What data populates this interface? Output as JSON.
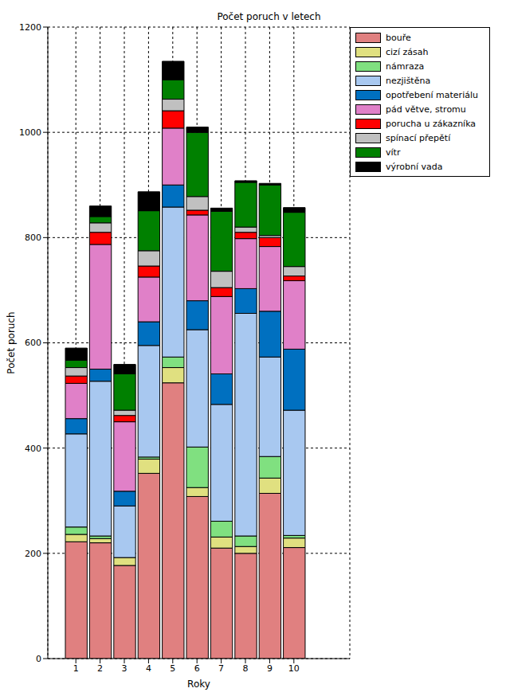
{
  "chart_data": {
    "type": "bar",
    "title": "Počet poruch v letech",
    "x_label": "Roky",
    "y_label": "Počet poruch",
    "categories": [
      "1",
      "2",
      "3",
      "4",
      "5",
      "6",
      "7",
      "8",
      "9",
      "10"
    ],
    "stacked": true,
    "grid": true,
    "legend": "upper right",
    "ylim": [
      0,
      1200
    ],
    "yticks": [
      0,
      200,
      400,
      600,
      800,
      1000,
      1200
    ],
    "series": [
      {
        "name": "bouře",
        "color": "#e08080",
        "values": [
          222,
          220,
          177,
          352,
          524,
          308,
          210,
          200,
          314,
          211
        ]
      },
      {
        "name": "cizí zásah",
        "color": "#e0e080",
        "values": [
          14,
          8,
          15,
          27,
          29,
          17,
          21,
          13,
          29,
          18
        ]
      },
      {
        "name": "námraza",
        "color": "#80e080",
        "values": [
          14,
          5,
          0,
          4,
          20,
          77,
          30,
          20,
          41,
          5
        ]
      },
      {
        "name": "nezjištěna",
        "color": "#a8c8f0",
        "values": [
          177,
          294,
          98,
          212,
          285,
          223,
          222,
          423,
          189,
          238
        ]
      },
      {
        "name": "opotřebení materiálu",
        "color": "#0070c0",
        "values": [
          29,
          23,
          28,
          45,
          42,
          55,
          58,
          47,
          87,
          116
        ]
      },
      {
        "name": "pád větve, stromu",
        "color": "#e080c8",
        "values": [
          67,
          237,
          132,
          85,
          108,
          163,
          147,
          95,
          123,
          130
        ]
      },
      {
        "name": "porucha u zákazníka",
        "color": "#ff0000",
        "values": [
          14,
          23,
          12,
          21,
          33,
          9,
          17,
          12,
          17,
          9
        ]
      },
      {
        "name": "spínací přepětí",
        "color": "#c0c0c0",
        "values": [
          16,
          18,
          10,
          29,
          22,
          26,
          31,
          10,
          4,
          18
        ]
      },
      {
        "name": "vítr",
        "color": "#008000",
        "values": [
          14,
          12,
          69,
          76,
          37,
          122,
          114,
          85,
          96,
          103
        ]
      },
      {
        "name": "výrobní vada",
        "color": "#000000",
        "values": [
          23,
          20,
          18,
          36,
          35,
          10,
          6,
          3,
          3,
          9
        ]
      }
    ]
  }
}
